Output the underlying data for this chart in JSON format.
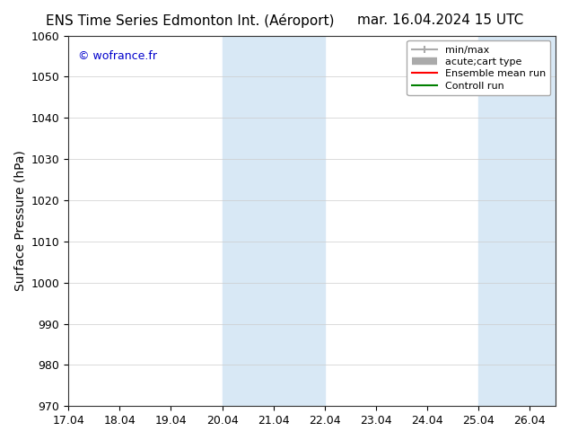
{
  "title_left": "ENS Time Series Edmonton Int. (Aéroport)",
  "title_right": "mar. 16.04.2024 15 UTC",
  "ylabel": "Surface Pressure (hPa)",
  "ylim": [
    970,
    1060
  ],
  "yticks": [
    970,
    980,
    990,
    1000,
    1010,
    1020,
    1030,
    1040,
    1050,
    1060
  ],
  "xlim_start": 17.0,
  "xlim_end": 26.5,
  "xtick_labels": [
    "17.04",
    "18.04",
    "19.04",
    "20.04",
    "21.04",
    "22.04",
    "23.04",
    "24.04",
    "25.04",
    "26.04"
  ],
  "xtick_positions": [
    17.0,
    18.0,
    19.0,
    20.0,
    21.0,
    22.0,
    23.0,
    24.0,
    25.0,
    26.0
  ],
  "watermark": "© wofrance.fr",
  "watermark_color": "#0000cc",
  "background_color": "#ffffff",
  "plot_bg_color": "#ffffff",
  "shaded_bands": [
    {
      "x_start": 20.0,
      "x_end": 21.0,
      "color": "#d8e8f5"
    },
    {
      "x_start": 21.0,
      "x_end": 22.0,
      "color": "#d8e8f5"
    },
    {
      "x_start": 25.0,
      "x_end": 26.0,
      "color": "#d8e8f5"
    },
    {
      "x_start": 26.0,
      "x_end": 26.5,
      "color": "#d8e8f5"
    }
  ],
  "legend_entries": [
    {
      "label": "min/max",
      "color": "#aaaaaa",
      "lw": 1.5,
      "style": "minmax"
    },
    {
      "label": "acute;cart type",
      "color": "#aaaaaa",
      "lw": 6,
      "style": "thick"
    },
    {
      "label": "Ensemble mean run",
      "color": "#ff0000",
      "lw": 1.5,
      "style": "line"
    },
    {
      "label": "Controll run",
      "color": "#008000",
      "lw": 1.5,
      "style": "line"
    }
  ],
  "title_fontsize": 11,
  "tick_fontsize": 9,
  "ylabel_fontsize": 10
}
